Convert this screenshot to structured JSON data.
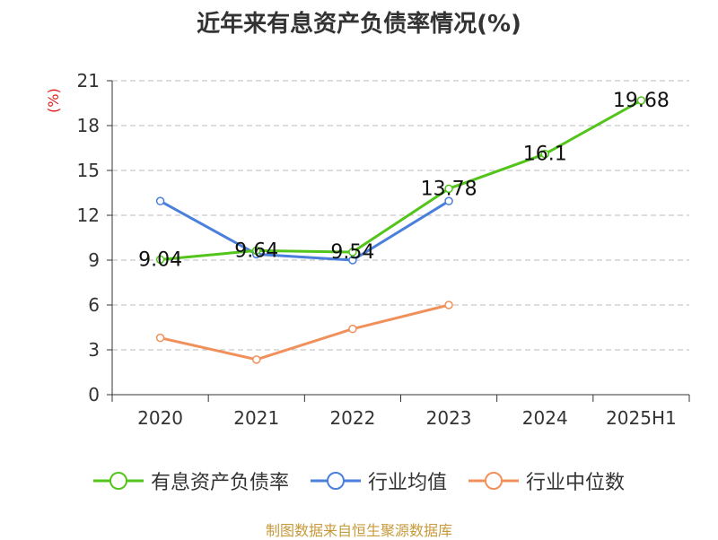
{
  "title": "近年来有息资产负债率情况(%)",
  "ylabel": "(%)",
  "footer": "制图数据来自恒生聚源数据库",
  "chart_data": {
    "type": "line",
    "categories": [
      "2020",
      "2021",
      "2022",
      "2023",
      "2024",
      "2025H1"
    ],
    "ylim": [
      0,
      21
    ],
    "yticks": [
      0,
      3,
      6,
      9,
      12,
      15,
      18,
      21
    ],
    "grid": true,
    "legend": "bottom",
    "series": [
      {
        "name": "有息资产负债率",
        "color": "#52c41a",
        "values": [
          9.04,
          9.64,
          9.54,
          13.78,
          16.1,
          19.68
        ],
        "labels": [
          "9.04",
          "9.64",
          "9.54",
          "13.78",
          "16.1",
          "19.68"
        ]
      },
      {
        "name": "行业均值",
        "color": "#4a7fdb",
        "values": [
          12.95,
          9.4,
          9.0,
          12.95,
          null,
          null
        ]
      },
      {
        "name": "行业中位数",
        "color": "#f0905a",
        "values": [
          3.8,
          2.35,
          4.4,
          6.0,
          null,
          null
        ]
      }
    ]
  }
}
